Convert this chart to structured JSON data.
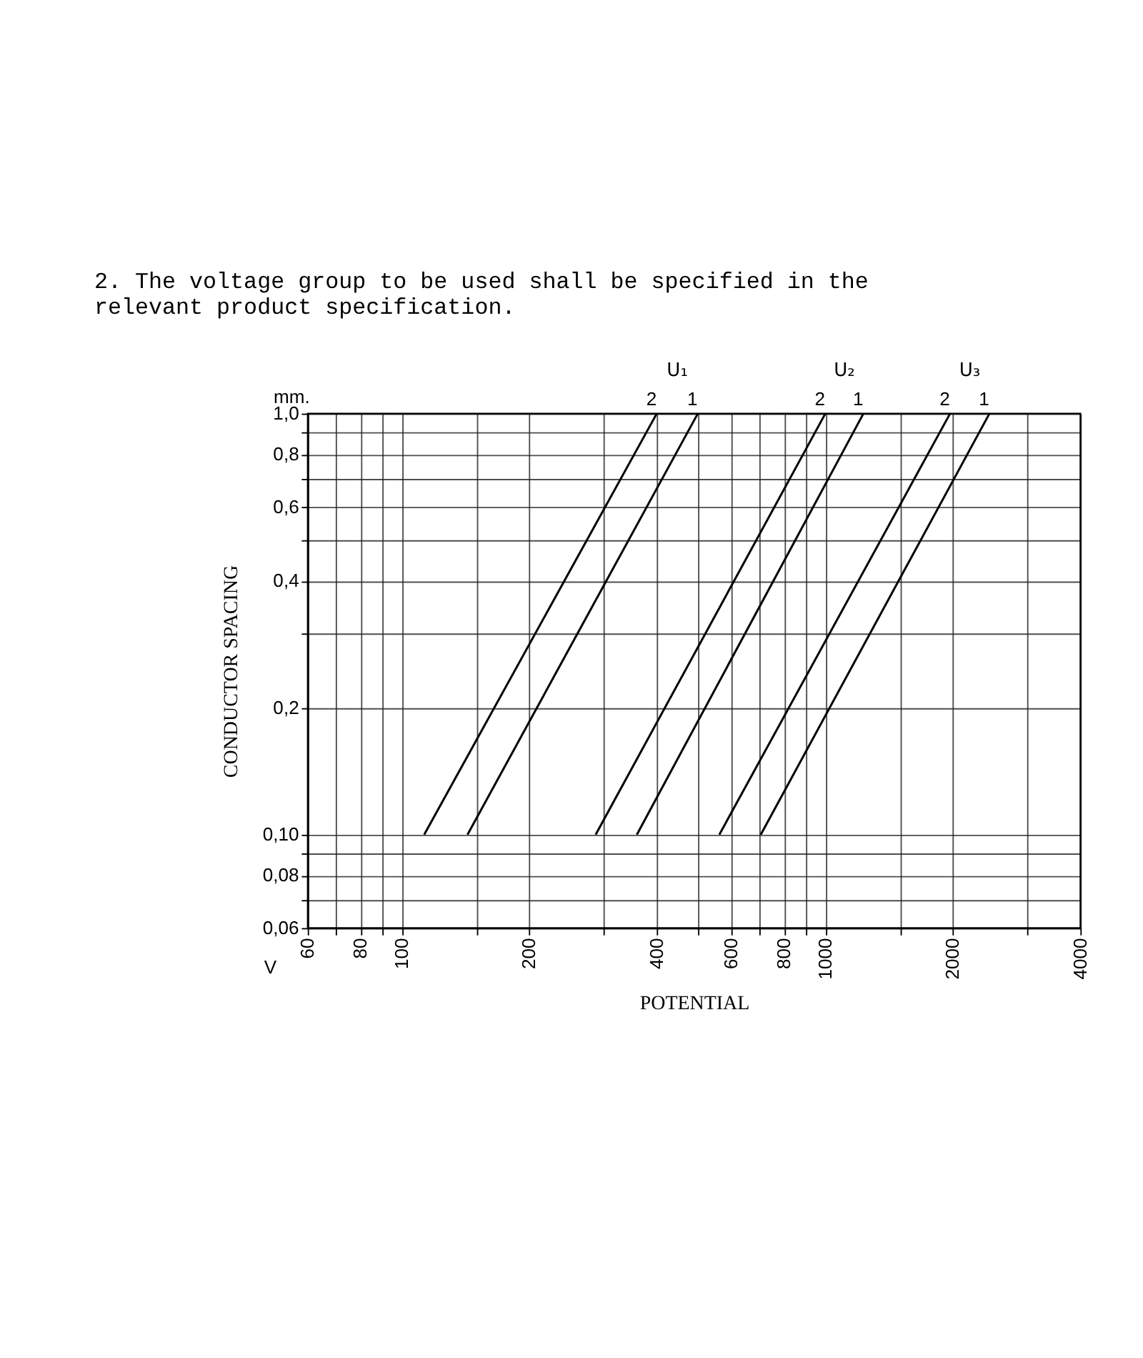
{
  "chart_data": {
    "type": "line",
    "title": "2. The voltage group to be used shall be specified in the relevant product specification.",
    "xlabel": "POTENTIAL",
    "ylabel": "CONDUCTOR SPACING",
    "log": "xy",
    "grid": true,
    "marker": "none",
    "line_style": "solid",
    "xlim": [
      60,
      4000
    ],
    "ylim": [
      0.06,
      1.0
    ],
    "xticks": [
      60,
      {
        "value": 70,
        "label": null
      },
      80,
      {
        "value": 90,
        "label": null
      },
      100,
      {
        "value": 150,
        "label": null
      },
      200,
      {
        "value": 300,
        "label": null
      },
      400,
      {
        "value": 500,
        "label": null
      },
      600,
      {
        "value": 700,
        "label": null
      },
      800,
      {
        "value": 900,
        "label": null
      },
      1000,
      {
        "value": 1500,
        "label": null
      },
      2000,
      {
        "value": 3000,
        "label": null
      },
      4000
    ],
    "yticks": [
      {
        "value": 0.06,
        "label": "0,06"
      },
      {
        "value": 0.07,
        "label": null
      },
      {
        "value": 0.08,
        "label": "0,08"
      },
      {
        "value": 0.09,
        "label": null
      },
      {
        "value": 0.1,
        "label": "0,10"
      },
      {
        "value": 0.2,
        "label": "0,2"
      },
      {
        "value": 0.3,
        "label": null
      },
      {
        "value": 0.4,
        "label": "0,4"
      },
      {
        "value": 0.5,
        "label": null
      },
      {
        "value": 0.6,
        "label": "0,6"
      },
      {
        "value": 0.7,
        "label": null
      },
      {
        "value": 0.8,
        "label": "0,8"
      },
      {
        "value": 0.9,
        "label": null
      },
      {
        "value": 1.0,
        "label": "1,0"
      }
    ],
    "series": [
      {
        "name": "2",
        "color": "#000000",
        "x": [
          113,
          400
        ],
        "values": [
          0.1,
          1.0
        ]
      },
      {
        "name": "1",
        "color": "#000000",
        "x": [
          143,
          500
        ],
        "values": [
          0.1,
          1.0
        ]
      },
      {
        "name": "2",
        "color": "#000000",
        "x": [
          287,
          1000
        ],
        "values": [
          0.1,
          1.0
        ]
      },
      {
        "name": "1",
        "color": "#000000",
        "x": [
          359,
          1230
        ],
        "values": [
          0.1,
          1.0
        ]
      },
      {
        "name": "2",
        "color": "#000000",
        "x": [
          562,
          1970
        ],
        "values": [
          0.1,
          1.0
        ]
      },
      {
        "name": "1",
        "color": "#000000",
        "x": [
          704,
          2440
        ],
        "values": [
          0.1,
          1.0
        ]
      }
    ],
    "annotations": [
      "mm.",
      "V",
      "U₁",
      "U₂",
      "U₃"
    ]
  }
}
